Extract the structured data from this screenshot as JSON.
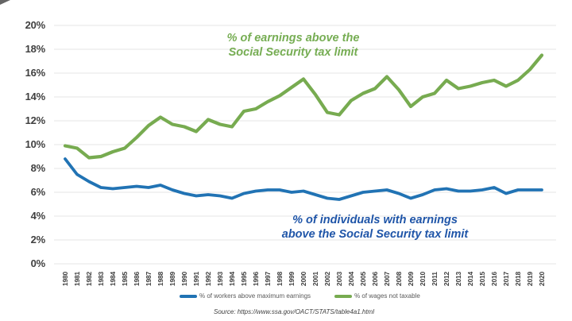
{
  "chart_data": {
    "type": "line",
    "title": "",
    "x": [
      1980,
      1981,
      1982,
      1983,
      1984,
      1985,
      1986,
      1987,
      1988,
      1989,
      1990,
      1991,
      1992,
      1993,
      1994,
      1995,
      1996,
      1997,
      1998,
      1999,
      2000,
      2001,
      2002,
      2003,
      2004,
      2005,
      2006,
      2007,
      2008,
      2009,
      2010,
      2011,
      2012,
      2013,
      2014,
      2015,
      2016,
      2017,
      2018,
      2019,
      2020
    ],
    "series": [
      {
        "name": "% of workers above maximum earnings",
        "color": "#2173b4",
        "values": [
          8.8,
          7.5,
          6.9,
          6.4,
          6.3,
          6.4,
          6.5,
          6.4,
          6.6,
          6.2,
          5.9,
          5.7,
          5.8,
          5.7,
          5.5,
          5.9,
          6.1,
          6.2,
          6.2,
          6.0,
          6.1,
          5.8,
          5.5,
          5.4,
          5.7,
          6.0,
          6.1,
          6.2,
          5.9,
          5.5,
          5.8,
          6.2,
          6.3,
          6.1,
          6.1,
          6.2,
          6.4,
          5.9,
          6.2,
          6.2,
          6.2
        ]
      },
      {
        "name": "% of wages not taxable",
        "color": "#77ab50",
        "values": [
          9.9,
          9.7,
          8.9,
          9.0,
          9.4,
          9.7,
          10.6,
          11.6,
          12.3,
          11.7,
          11.5,
          11.1,
          12.1,
          11.7,
          11.5,
          12.8,
          13.0,
          13.6,
          14.1,
          14.8,
          15.5,
          14.2,
          12.7,
          12.5,
          13.7,
          14.3,
          14.7,
          15.7,
          14.6,
          13.2,
          14.0,
          14.3,
          15.4,
          14.7,
          14.9,
          15.2,
          15.4,
          14.9,
          15.4,
          16.3,
          17.5
        ]
      }
    ],
    "ylim": [
      0,
      20
    ],
    "y_tick_step": 2,
    "y_tick_labels": [
      "0%",
      "2%",
      "4%",
      "6%",
      "8%",
      "10%",
      "12%",
      "14%",
      "16%",
      "18%",
      "20%"
    ],
    "grid": "horizontal-only",
    "legend_position": "bottom-center",
    "annotations": [
      {
        "line1": "% of earnings above the",
        "line2": "Social Security tax limit",
        "color": "#76ad53",
        "anchor": "above-green-line"
      },
      {
        "line1": "% of individuals with earnings",
        "line2": "above the Social Security tax limit",
        "color": "#1f55a8",
        "anchor": "below-blue-line"
      }
    ]
  },
  "legend": {
    "items": [
      {
        "label": "% of workers above maximum earnings",
        "color": "#2173b4"
      },
      {
        "label": "% of wages not taxable",
        "color": "#77ab50"
      }
    ]
  },
  "source_note": "Source: https://www.ssa.gov/OACT/STATS/table4a1.html",
  "colors": {
    "grid": "#e6e6e6",
    "axis_text": "#3f3f3f",
    "legend_text": "#595959",
    "background": "#ffffff"
  }
}
